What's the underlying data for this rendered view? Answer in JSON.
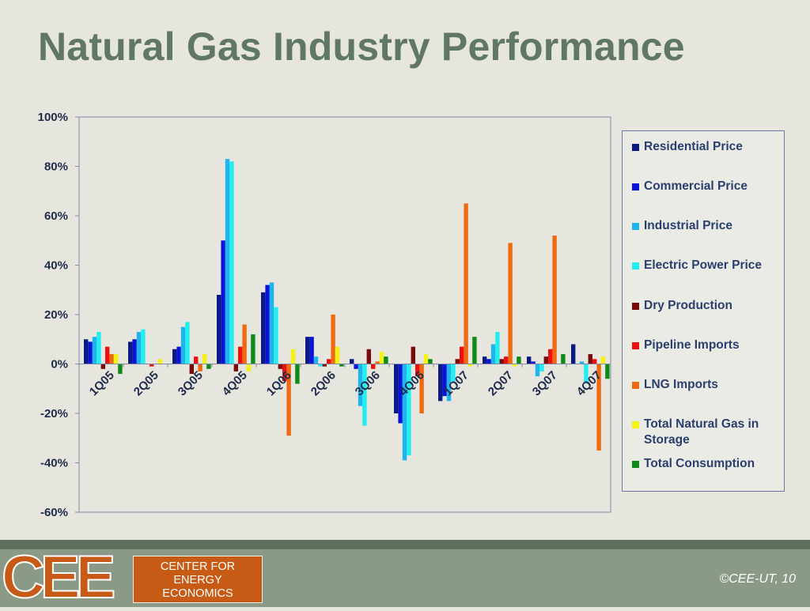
{
  "slide": {
    "title": "Natural Gas Industry Performance",
    "copyright": "©CEE-UT, 10"
  },
  "logo": {
    "mark": "CEE",
    "line1": "CENTER FOR",
    "line2": "ENERGY",
    "line3": "ECONOMICS"
  },
  "chart_data": {
    "type": "bar",
    "categories": [
      "1Q05",
      "2Q05",
      "3Q05",
      "4Q05",
      "1Q06",
      "2Q06",
      "3Q06",
      "4Q06",
      "1Q07",
      "2Q07",
      "3Q07",
      "4Q07"
    ],
    "ylim": [
      -60,
      100
    ],
    "yticks": [
      "100%",
      "80%",
      "60%",
      "40%",
      "20%",
      "0%",
      "-20%",
      "-40%",
      "-60%"
    ],
    "ytick_values": [
      100,
      80,
      60,
      40,
      20,
      0,
      -20,
      -40,
      -60
    ],
    "grid": false,
    "legend_position": "right",
    "series": [
      {
        "name": "Residential Price",
        "color": "#0a1a80",
        "values": [
          10,
          9,
          6,
          28,
          29,
          11,
          2,
          -20,
          -15,
          3,
          3,
          8
        ]
      },
      {
        "name": "Commercial Price",
        "color": "#0a14d8",
        "values": [
          9,
          10,
          7,
          50,
          32,
          11,
          -2,
          -24,
          -13,
          2,
          1,
          0
        ]
      },
      {
        "name": "Industrial Price",
        "color": "#1eb4ee",
        "values": [
          11,
          13,
          15,
          83,
          33,
          3,
          -17,
          -39,
          -15,
          8,
          -5,
          1
        ]
      },
      {
        "name": "Electric Power Price",
        "color": "#22eef0",
        "values": [
          13,
          14,
          17,
          82,
          23,
          -1,
          -25,
          -37,
          -7,
          13,
          -3,
          -8
        ]
      },
      {
        "name": "Dry Production",
        "color": "#7a0a0a",
        "values": [
          -2,
          0,
          -4,
          -3,
          -2,
          -1,
          6,
          7,
          2,
          2,
          3,
          4
        ]
      },
      {
        "name": "Pipeline Imports",
        "color": "#ee1010",
        "values": [
          7,
          -1,
          3,
          7,
          -7,
          2,
          -2,
          -5,
          7,
          3,
          6,
          2
        ]
      },
      {
        "name": "LNG Imports",
        "color": "#ee6a12",
        "values": [
          4,
          0,
          -3,
          16,
          -29,
          20,
          1,
          -20,
          65,
          49,
          52,
          -35
        ]
      },
      {
        "name": "Total Natural Gas in Storage",
        "color": "#f4f212",
        "values": [
          4,
          2,
          4,
          -3,
          6,
          7,
          5,
          4,
          -1,
          -1,
          0,
          3
        ]
      },
      {
        "name": "Total Consumption",
        "color": "#0e8a16",
        "values": [
          -4,
          0,
          -2,
          12,
          -8,
          -1,
          3,
          2,
          11,
          3,
          4,
          -6
        ]
      }
    ]
  }
}
